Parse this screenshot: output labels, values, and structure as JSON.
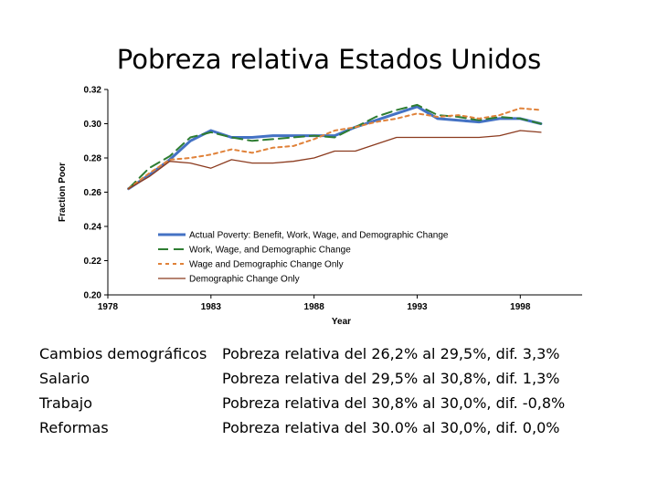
{
  "slide": {
    "title": "Pobreza relativa Estados Unidos"
  },
  "notes": [
    {
      "factor": "Cambios demográficos",
      "effect": "Pobreza relativa del 26,2% al 29,5%, dif. 3,3%"
    },
    {
      "factor": "Salario",
      "effect": "Pobreza relativa del 29,5% al 30,8%, dif. 1,3%"
    },
    {
      "factor": "Trabajo",
      "effect": "Pobreza relativa del 30,8% al 30,0%, dif. -0,8%"
    },
    {
      "factor": "Reformas",
      "effect": "Pobreza relativa del 30.0% al 30,0%, dif. 0,0%"
    }
  ],
  "chart_data": {
    "type": "line",
    "title": "",
    "xlabel": "Year",
    "ylabel": "Fraction Poor",
    "xlim": [
      1978,
      2001
    ],
    "ylim": [
      0.2,
      0.32
    ],
    "xticks": [
      1978,
      1983,
      1988,
      1993,
      1998
    ],
    "yticks": [
      "0.20",
      "0.22",
      "0.24",
      "0.26",
      "0.28",
      "0.30",
      "0.32"
    ],
    "grid": false,
    "legend_position": "inside-bottom-center",
    "x": [
      1979,
      1980,
      1981,
      1982,
      1983,
      1984,
      1985,
      1986,
      1987,
      1988,
      1989,
      1990,
      1991,
      1992,
      1993,
      1994,
      1995,
      1996,
      1997,
      1998,
      1999
    ],
    "series": [
      {
        "name": "Actual Poverty: Benefit, Work, Wage, and Demographic Change",
        "color": "#4472c4",
        "style": "solid",
        "width": 3,
        "values": [
          0.262,
          0.27,
          0.279,
          0.29,
          0.296,
          0.292,
          0.292,
          0.293,
          0.293,
          0.293,
          0.293,
          0.298,
          0.302,
          0.306,
          0.31,
          0.303,
          0.302,
          0.301,
          0.303,
          0.303,
          0.3
        ]
      },
      {
        "name": "Work, Wage, and Demographic Change",
        "color": "#2e7d32",
        "style": "dashed",
        "width": 2,
        "values": [
          0.262,
          0.274,
          0.281,
          0.292,
          0.295,
          0.292,
          0.29,
          0.291,
          0.292,
          0.293,
          0.292,
          0.298,
          0.304,
          0.308,
          0.311,
          0.305,
          0.304,
          0.302,
          0.304,
          0.303,
          0.3
        ]
      },
      {
        "name": "Wage and Demographic Change Only",
        "color": "#e0823a",
        "style": "dotted",
        "width": 2,
        "values": [
          0.262,
          0.271,
          0.279,
          0.28,
          0.282,
          0.285,
          0.283,
          0.286,
          0.287,
          0.291,
          0.296,
          0.298,
          0.301,
          0.303,
          0.306,
          0.304,
          0.305,
          0.303,
          0.305,
          0.309,
          0.308
        ]
      },
      {
        "name": "Demographic Change Only",
        "color": "#8b3a1e",
        "style": "solid",
        "width": 1.3,
        "values": [
          0.262,
          0.269,
          0.278,
          0.277,
          0.274,
          0.279,
          0.277,
          0.277,
          0.278,
          0.28,
          0.284,
          0.284,
          0.288,
          0.292,
          0.292,
          0.292,
          0.292,
          0.292,
          0.293,
          0.296,
          0.295
        ]
      }
    ]
  }
}
